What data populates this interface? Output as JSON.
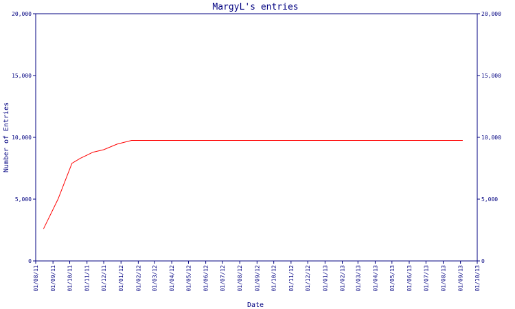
{
  "chart_data": {
    "type": "line",
    "title": "MargyL's entries",
    "xlabel": "Date",
    "ylabel": "Number of Entries",
    "ylim": [
      0,
      20000
    ],
    "y_ticks": [
      0,
      5000,
      10000,
      15000,
      20000
    ],
    "y_tick_labels": [
      "0",
      "5,000",
      "10,000",
      "15,000",
      "20,000"
    ],
    "x_ticks": [
      "01/08/11",
      "01/09/11",
      "01/10/11",
      "01/11/11",
      "01/12/11",
      "01/01/12",
      "01/02/12",
      "01/03/12",
      "01/04/12",
      "01/05/12",
      "01/06/12",
      "01/07/12",
      "01/08/12",
      "01/09/12",
      "01/10/12",
      "01/11/12",
      "01/12/12",
      "01/01/13",
      "01/02/13",
      "01/03/13",
      "01/04/13",
      "01/05/13",
      "01/06/13",
      "01/07/13",
      "01/08/13",
      "01/09/13",
      "01/10/13"
    ],
    "xlim": [
      "2011-08-01",
      "2013-10-01"
    ],
    "grid": false,
    "series": [
      {
        "color": "#ff0000",
        "points": [
          {
            "x": "2011-08-15",
            "y": 2600
          },
          {
            "x": "2011-09-10",
            "y": 5000
          },
          {
            "x": "2011-10-05",
            "y": 7900
          },
          {
            "x": "2011-10-20",
            "y": 8300
          },
          {
            "x": "2011-11-12",
            "y": 8800
          },
          {
            "x": "2011-12-01",
            "y": 9000
          },
          {
            "x": "2011-12-25",
            "y": 9450
          },
          {
            "x": "2012-01-20",
            "y": 9750
          },
          {
            "x": "2012-06-01",
            "y": 9750
          },
          {
            "x": "2013-01-01",
            "y": 9750
          },
          {
            "x": "2013-09-05",
            "y": 9750
          }
        ]
      }
    ],
    "axis_color": "#000080",
    "text_color": "#000080"
  }
}
